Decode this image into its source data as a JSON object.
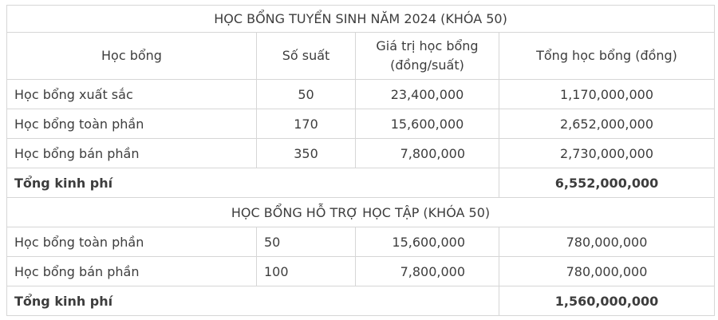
{
  "section1": {
    "title": "HỌC BỔNG TUYỂN SINH NĂM 2024 (KHÓA 50)",
    "headers": [
      "Học bổng",
      "Số suất",
      "Giá trị học bổng (đồng/suất)",
      "Tổng học bổng (đồng)"
    ],
    "rows": [
      [
        "Học bổng xuất sắc",
        "50",
        "23,400,000",
        "1,170,000,000"
      ],
      [
        "Học bổng toàn phần",
        "170",
        "15,600,000",
        "2,652,000,000"
      ],
      [
        "Học bổng bán phần",
        "350",
        "7,800,000",
        "2,730,000,000"
      ]
    ],
    "total_label": "Tổng kinh phí",
    "total_value": "6,552,000,000"
  },
  "section2": {
    "title": "HỌC BỔNG HỖ TRỢ HỌC TẬP (KHÓA 50)",
    "rows": [
      [
        "Học bổng toàn phần",
        "50",
        "15,600,000",
        "780,000,000"
      ],
      [
        "Học bổng bán phần",
        "100",
        "7,800,000",
        "780,000,000"
      ]
    ],
    "total_label": "Tổng kinh phí",
    "total_value": "1,560,000,000"
  }
}
